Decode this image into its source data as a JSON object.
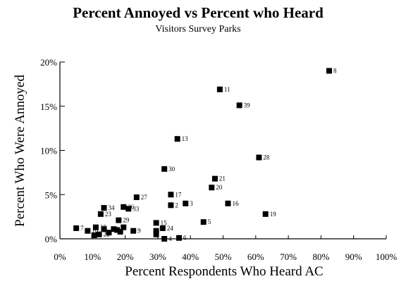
{
  "chart_data": {
    "type": "scatter",
    "title": "Percent Annoyed vs Percent who Heard",
    "subtitle": "Visitors Survey Parks",
    "xlabel": "Percent Respondents Who Heard AC",
    "ylabel": "Percent Who  Were Annoyed",
    "xlim": [
      0,
      100
    ],
    "ylim": [
      0,
      20
    ],
    "x_ticks": [
      "0%",
      "10%",
      "20%",
      "30%",
      "40%",
      "50%",
      "60%",
      "70%",
      "80%",
      "90%",
      "100%"
    ],
    "y_ticks": [
      "0%",
      "5%",
      "10%",
      "15%",
      "20%"
    ],
    "grid": false,
    "points": [
      {
        "label": "8",
        "x": 82.5,
        "y": 19.0
      },
      {
        "label": "11",
        "x": 49.0,
        "y": 16.9
      },
      {
        "label": "39",
        "x": 55.0,
        "y": 15.1
      },
      {
        "label": "13",
        "x": 36.0,
        "y": 11.3
      },
      {
        "label": "28",
        "x": 61.0,
        "y": 9.2
      },
      {
        "label": "30",
        "x": 32.0,
        "y": 7.9
      },
      {
        "label": "21",
        "x": 47.5,
        "y": 6.8
      },
      {
        "label": "20",
        "x": 46.5,
        "y": 5.8
      },
      {
        "label": "17",
        "x": 34.0,
        "y": 5.0
      },
      {
        "label": "27",
        "x": 23.5,
        "y": 4.7
      },
      {
        "label": "3",
        "x": 38.5,
        "y": 4.0
      },
      {
        "label": "2",
        "x": 34.0,
        "y": 3.8
      },
      {
        "label": "16",
        "x": 51.5,
        "y": 4.0
      },
      {
        "label": "34",
        "x": 13.5,
        "y": 3.5
      },
      {
        "label": "26",
        "x": 19.5,
        "y": 3.6
      },
      {
        "label": "33",
        "x": 21.0,
        "y": 3.4
      },
      {
        "label": "23",
        "x": 12.5,
        "y": 2.8
      },
      {
        "label": "19",
        "x": 63.0,
        "y": 2.8
      },
      {
        "label": "29",
        "x": 18.0,
        "y": 2.1
      },
      {
        "label": "5",
        "x": 44.0,
        "y": 1.9
      },
      {
        "label": "15",
        "x": 29.5,
        "y": 1.8
      },
      {
        "label": "24",
        "x": 31.5,
        "y": 1.2
      },
      {
        "label": "7",
        "x": 5.0,
        "y": 1.2
      },
      {
        "label": "18",
        "x": 11.0,
        "y": 1.3
      },
      {
        "label": "9",
        "x": 22.5,
        "y": 0.9
      },
      {
        "label": "10",
        "x": 8.5,
        "y": 0.9
      },
      {
        "label": "22",
        "x": 12.0,
        "y": 0.5
      },
      {
        "label": "4",
        "x": 32.0,
        "y": 0.0
      },
      {
        "label": "6",
        "x": 36.5,
        "y": 0.1
      }
    ],
    "extra_points": [
      {
        "x": 10.5,
        "y": 0.4
      },
      {
        "x": 13.5,
        "y": 1.1
      },
      {
        "x": 15.0,
        "y": 0.7
      },
      {
        "x": 16.5,
        "y": 1.1
      },
      {
        "x": 17.5,
        "y": 1.0
      },
      {
        "x": 18.5,
        "y": 0.8
      },
      {
        "x": 19.5,
        "y": 1.3
      },
      {
        "x": 29.5,
        "y": 0.9
      },
      {
        "x": 29.5,
        "y": 0.5
      }
    ]
  }
}
